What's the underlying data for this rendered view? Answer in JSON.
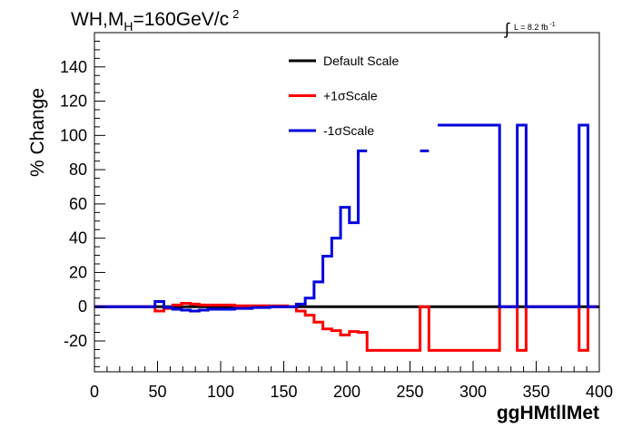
{
  "chart_data": {
    "type": "line",
    "title_parts": {
      "main": "WH,M",
      "sub": "H",
      "rest": "=160GeV/c",
      "sup": "2"
    },
    "lumi_parts": {
      "integral": "∫",
      "text": "L = 8.2 fb",
      "sup": "-1"
    },
    "xlabel": "ggHMtllMet",
    "ylabel": "% Change",
    "xlim": [
      0,
      400
    ],
    "ylim": [
      -38,
      160
    ],
    "xticks": [
      0,
      50,
      100,
      150,
      200,
      250,
      300,
      350,
      400
    ],
    "yticks": [
      -20,
      0,
      20,
      40,
      60,
      80,
      100,
      120,
      140
    ],
    "legend_position": "top-center",
    "series": [
      {
        "name": "Default Scale",
        "color": "#000000",
        "edges": [
          0,
          400
        ],
        "values": [
          0
        ]
      },
      {
        "name": "+1σScale",
        "color": "#ff0000",
        "edges": [
          0,
          48,
          55,
          62,
          69,
          76,
          83,
          90,
          97,
          104,
          111,
          118,
          125,
          132,
          139,
          146,
          153,
          160,
          167,
          174,
          181,
          188,
          195,
          202,
          209,
          216,
          223,
          230,
          237,
          244,
          251,
          258,
          265,
          272,
          279,
          286,
          293,
          300,
          307,
          314,
          321,
          328,
          335,
          342,
          349,
          356,
          363,
          370,
          377,
          384,
          391,
          398
        ],
        "values": [
          0,
          -2.5,
          -1,
          1,
          2,
          1.5,
          1,
          1,
          1,
          1,
          0.5,
          0.5,
          0.5,
          0.5,
          0.5,
          0.5,
          0,
          -2.5,
          -5,
          -9,
          -13,
          -14,
          -16.5,
          -14.5,
          -15,
          -25.5,
          -25.5,
          -25.5,
          -25.5,
          -25.5,
          -25.5,
          0,
          -25.5,
          -25.5,
          -25.5,
          -25.5,
          -25.5,
          -25.5,
          -25.5,
          -25.5,
          0,
          0,
          -25.5,
          0,
          0,
          0,
          0,
          0,
          0,
          -25.5,
          0
        ]
      },
      {
        "name": "-1σScale",
        "color": "#0000dd",
        "edges": [
          0,
          48,
          55,
          62,
          69,
          76,
          83,
          90,
          97,
          104,
          111,
          118,
          125,
          132,
          139,
          146,
          153,
          160,
          167,
          174,
          181,
          188,
          195,
          202,
          209,
          216,
          223,
          230,
          237,
          244,
          251,
          258,
          265,
          272,
          279,
          286,
          293,
          300,
          307,
          314,
          321,
          328,
          335,
          342,
          349,
          356,
          363,
          370,
          377,
          384,
          391,
          398
        ],
        "values": [
          0,
          3,
          -0.5,
          -1.5,
          -2,
          -2.5,
          -2,
          -1.5,
          -1.5,
          -1.5,
          -1,
          -1,
          -0.5,
          -0.5,
          0,
          0,
          0,
          1.5,
          5,
          14.5,
          29.5,
          40,
          58,
          49,
          91,
          null,
          null,
          null,
          null,
          null,
          null,
          91,
          null,
          106,
          106,
          106,
          106,
          106,
          106,
          106,
          0,
          0,
          106,
          0,
          0,
          0,
          0,
          0,
          0,
          106,
          0
        ]
      }
    ]
  }
}
